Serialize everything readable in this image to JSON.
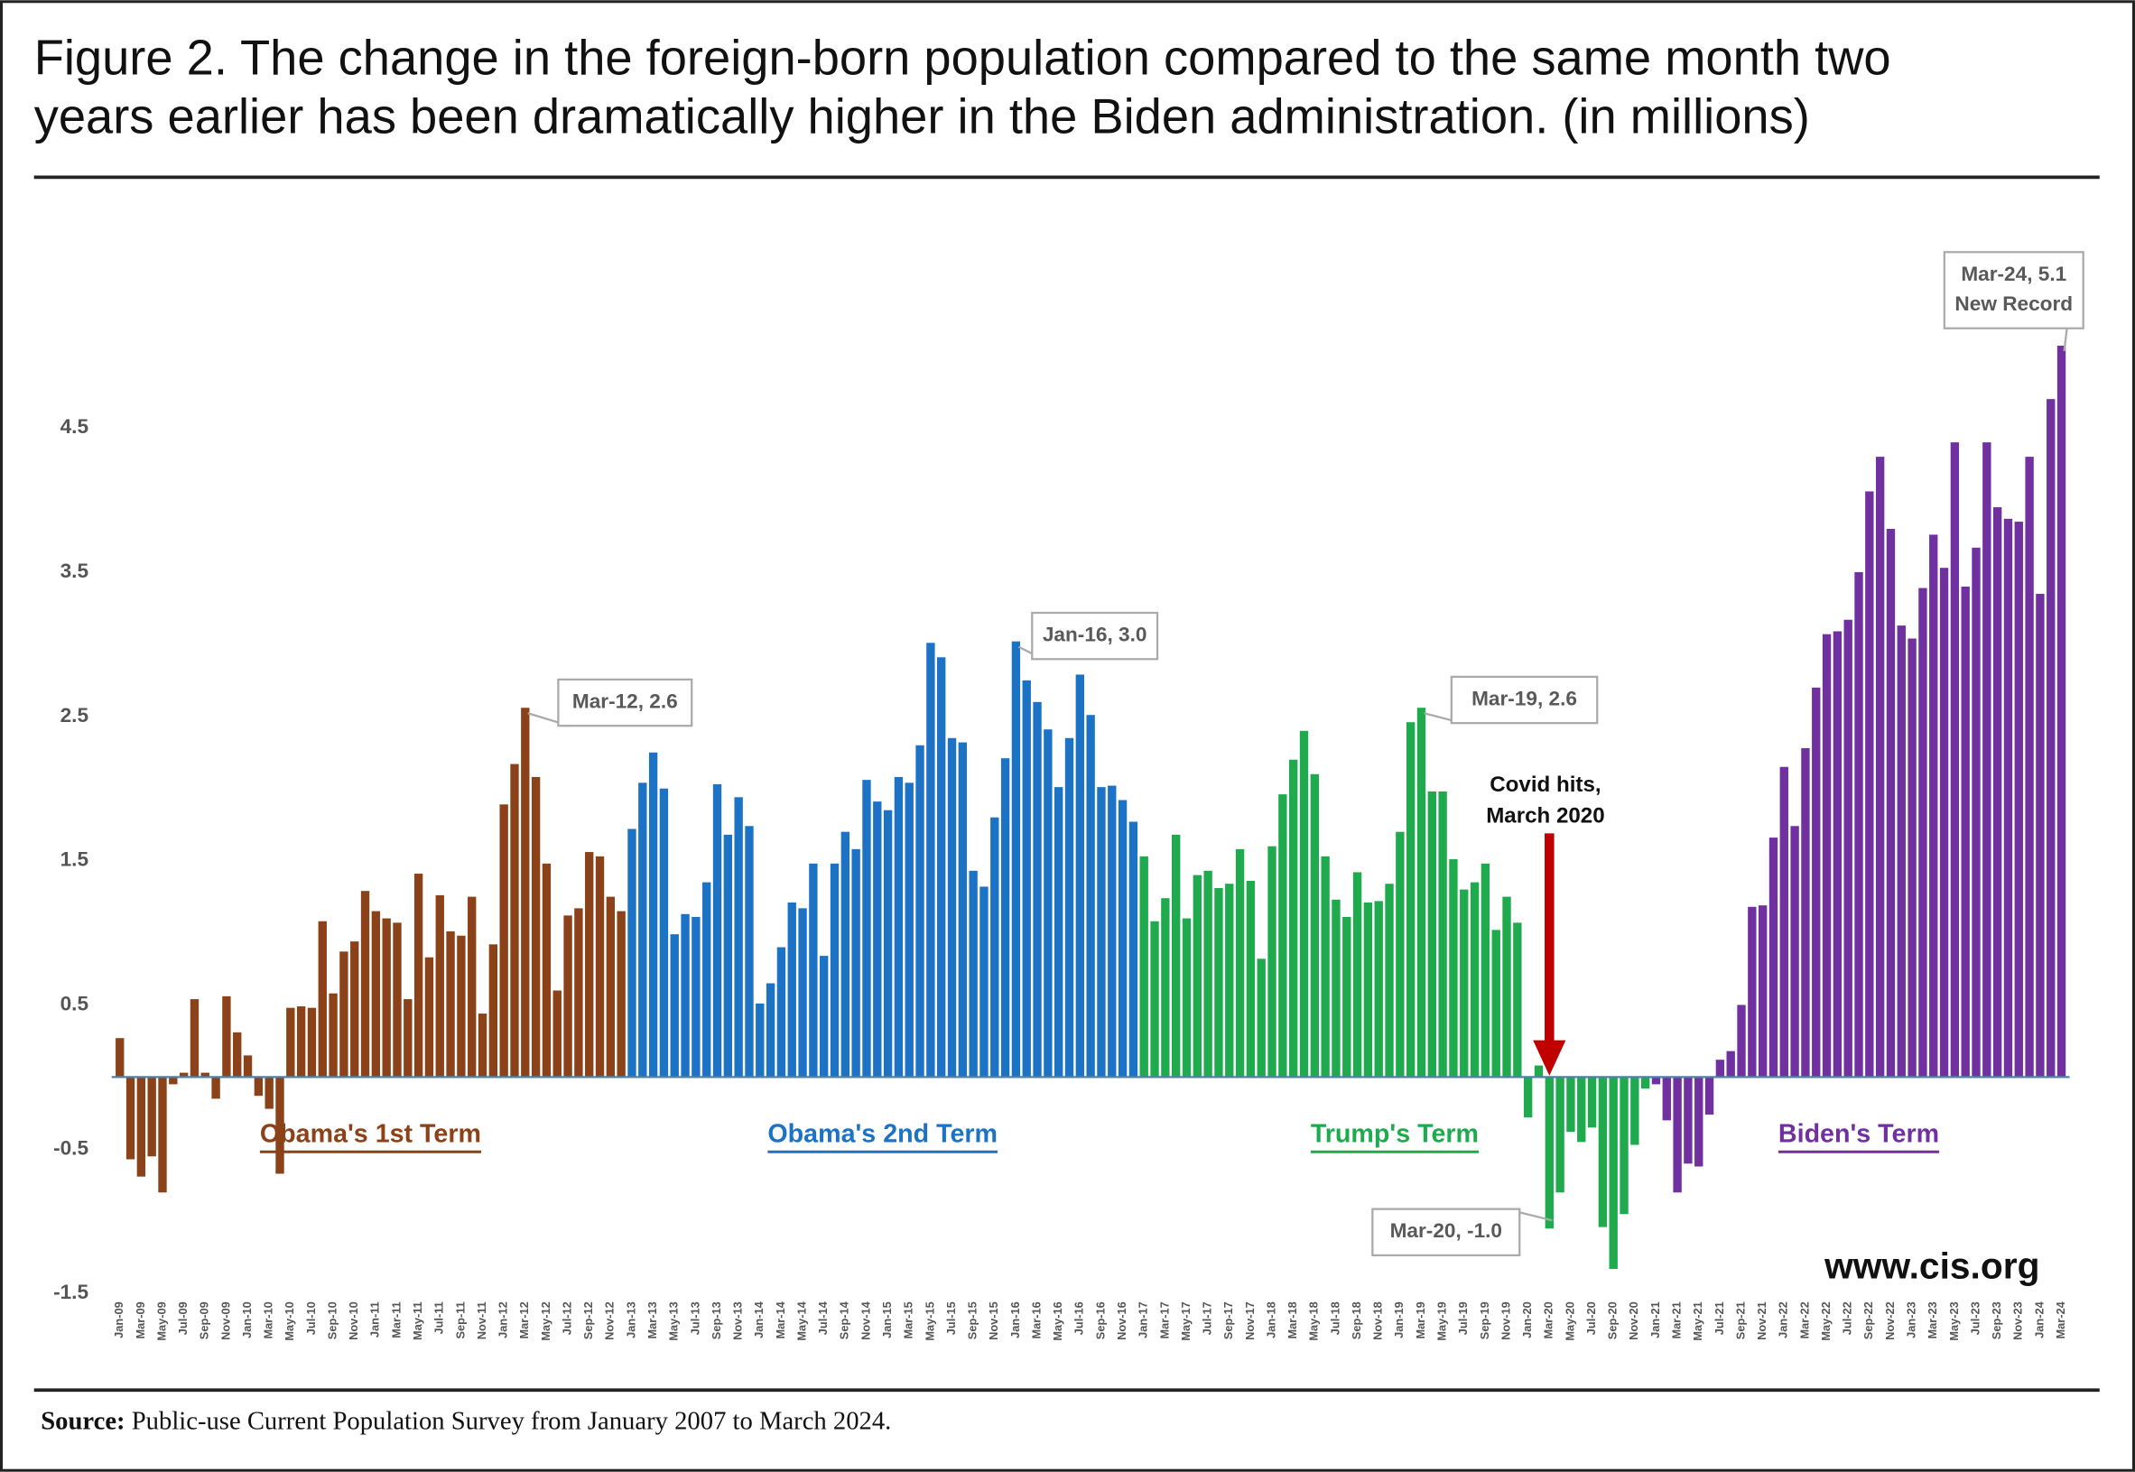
{
  "chart_data": {
    "type": "bar",
    "title": [
      "Figure 2. The change in the foreign-born population compared to the same month two",
      "years earlier has been dramatically higher in the Biden administration. (in millions)"
    ],
    "categories": [
      "Jan-09",
      null,
      "Mar-09",
      null,
      "May-09",
      null,
      "Jul-09",
      null,
      "Sep-09",
      null,
      "Nov-09",
      null,
      "Jan-10",
      null,
      "Mar-10",
      null,
      "May-10",
      null,
      "Jul-10",
      null,
      "Sep-10",
      null,
      "Nov-10",
      null,
      "Jan-11",
      null,
      "Mar-11",
      null,
      "May-11",
      null,
      "Jul-11",
      null,
      "Sep-11",
      null,
      "Nov-11",
      null,
      "Jan-12",
      null,
      "Mar-12",
      null,
      "May-12",
      null,
      "Jul-12",
      null,
      "Sep-12",
      null,
      "Nov-12",
      null,
      "Jan-13",
      null,
      "Mar-13",
      null,
      "May-13",
      null,
      "Jul-13",
      null,
      "Sep-13",
      null,
      "Nov-13",
      null,
      "Jan-14",
      null,
      "Mar-14",
      null,
      "May-14",
      null,
      "Jul-14",
      null,
      "Sep-14",
      null,
      "Nov-14",
      null,
      "Jan-15",
      null,
      "Mar-15",
      null,
      "May-15",
      null,
      "Jul-15",
      null,
      "Sep-15",
      null,
      "Nov-15",
      null,
      "Jan-16",
      null,
      "Mar-16",
      null,
      "May-16",
      null,
      "Jul-16",
      null,
      "Sep-16",
      null,
      "Nov-16",
      null,
      "Jan-17",
      null,
      "Mar-17",
      null,
      "May-17",
      null,
      "Jul-17",
      null,
      "Sep-17",
      null,
      "Nov-17",
      null,
      "Jan-18",
      null,
      "Mar-18",
      null,
      "May-18",
      null,
      "Jul-18",
      null,
      "Sep-18",
      null,
      "Nov-18",
      null,
      "Jan-19",
      null,
      "Mar-19",
      null,
      "May-19",
      null,
      "Jul-19",
      null,
      "Sep-19",
      null,
      "Nov-19",
      null,
      "Jan-20",
      null,
      "Mar-20",
      null,
      "May-20",
      null,
      "Jul-20",
      null,
      "Sep-20",
      null,
      "Nov-20",
      null,
      "Jan-21",
      null,
      "Mar-21",
      null,
      "May-21",
      null,
      "Jul-21",
      null,
      "Sep-21",
      null,
      "Nov-21",
      null,
      "Jan-22",
      null,
      "Mar-22",
      null,
      "May-22",
      null,
      "Jul-22",
      null,
      "Sep-22",
      null,
      "Nov-22",
      null,
      "Jan-23",
      null,
      "Mar-23",
      null,
      "May-23",
      null,
      "Jul-23",
      null,
      "Sep-23",
      null,
      "Nov-23",
      null,
      "Jan-24",
      null,
      "Mar-24"
    ],
    "series": [
      {
        "name": "Obama's 1st Term",
        "color": "#8b4218",
        "values": [
          0.27,
          -0.57,
          -0.69,
          -0.55,
          -0.8,
          -0.05,
          0.03,
          0.54,
          0.03,
          -0.15,
          0.56,
          0.31,
          0.15,
          -0.13,
          -0.22,
          -0.67,
          0.48,
          0.49,
          0.48,
          1.08,
          0.58,
          0.87,
          0.94,
          1.29,
          1.15,
          1.1,
          1.07,
          0.54,
          1.41,
          0.83,
          1.26,
          1.01,
          0.98,
          1.25,
          0.44,
          0.92,
          1.89,
          2.17,
          2.56,
          2.08,
          1.48,
          0.6,
          1.12,
          1.17,
          1.56,
          1.53,
          1.25,
          1.15,
          null,
          null,
          null,
          null,
          null,
          null,
          null,
          null,
          null,
          null,
          null,
          null,
          null,
          null,
          null,
          null,
          null,
          null,
          null,
          null,
          null,
          null,
          null,
          null,
          null,
          null,
          null,
          null,
          null,
          null,
          null,
          null,
          null,
          null,
          null,
          null,
          null,
          null,
          null,
          null,
          null,
          null,
          null,
          null,
          null,
          null,
          null,
          null,
          null,
          null,
          null,
          null,
          null,
          null,
          null,
          null,
          null,
          null,
          null,
          null,
          null,
          null,
          null,
          null,
          null,
          null,
          null,
          null,
          null,
          null,
          null,
          null,
          null,
          null,
          null,
          null,
          null,
          null,
          null,
          null,
          null,
          null,
          null,
          null,
          null,
          null,
          null,
          null,
          null,
          null,
          null,
          null,
          null,
          null,
          null,
          null,
          null,
          null,
          null,
          null,
          null,
          null,
          null,
          null,
          null,
          null,
          null,
          null,
          null,
          null,
          null,
          null,
          null,
          null,
          null,
          null,
          null,
          null,
          null,
          null,
          null,
          null,
          null,
          null,
          null,
          null,
          null,
          null,
          null,
          null,
          null,
          null,
          null,
          null,
          null
        ]
      },
      {
        "name": "Obama's 2nd Term",
        "color": "#1c72c4",
        "values": [
          null,
          null,
          null,
          null,
          null,
          null,
          null,
          null,
          null,
          null,
          null,
          null,
          null,
          null,
          null,
          null,
          null,
          null,
          null,
          null,
          null,
          null,
          null,
          null,
          null,
          null,
          null,
          null,
          null,
          null,
          null,
          null,
          null,
          null,
          null,
          null,
          null,
          null,
          null,
          null,
          null,
          null,
          null,
          null,
          null,
          null,
          null,
          null,
          1.72,
          2.04,
          2.25,
          2.0,
          0.99,
          1.13,
          1.11,
          1.35,
          2.03,
          1.68,
          1.94,
          1.74,
          0.51,
          0.65,
          0.9,
          1.21,
          1.17,
          1.48,
          0.84,
          1.48,
          1.7,
          1.58,
          2.06,
          1.91,
          1.85,
          2.08,
          2.04,
          2.3,
          3.01,
          2.91,
          2.35,
          2.32,
          1.43,
          1.32,
          1.8,
          2.21,
          3.02,
          2.75,
          2.6,
          2.41,
          2.01,
          2.35,
          2.79,
          2.51,
          2.01,
          2.02,
          1.92,
          1.77,
          null,
          null,
          null,
          null,
          null,
          null,
          null,
          null,
          null,
          null,
          null,
          null,
          null,
          null,
          null,
          null,
          null,
          null,
          null,
          null,
          null,
          null,
          null,
          null,
          null,
          null,
          null,
          null,
          null,
          null,
          null,
          null,
          null,
          null,
          null,
          null,
          null,
          null,
          null,
          null,
          null,
          null,
          null,
          null,
          null,
          null,
          null,
          null,
          null,
          null,
          null,
          null,
          null,
          null,
          null,
          null,
          null,
          null,
          null,
          null,
          null,
          null,
          null,
          null,
          null,
          null,
          null,
          null,
          null,
          null,
          null,
          null,
          null,
          null,
          null,
          null,
          null,
          null,
          null,
          null,
          null,
          null,
          null,
          null,
          null,
          null,
          null
        ]
      },
      {
        "name": "Trump's Term",
        "color": "#1faa4e",
        "values": [
          null,
          null,
          null,
          null,
          null,
          null,
          null,
          null,
          null,
          null,
          null,
          null,
          null,
          null,
          null,
          null,
          null,
          null,
          null,
          null,
          null,
          null,
          null,
          null,
          null,
          null,
          null,
          null,
          null,
          null,
          null,
          null,
          null,
          null,
          null,
          null,
          null,
          null,
          null,
          null,
          null,
          null,
          null,
          null,
          null,
          null,
          null,
          null,
          null,
          null,
          null,
          null,
          null,
          null,
          null,
          null,
          null,
          null,
          null,
          null,
          null,
          null,
          null,
          null,
          null,
          null,
          null,
          null,
          null,
          null,
          null,
          null,
          null,
          null,
          null,
          null,
          null,
          null,
          null,
          null,
          null,
          null,
          null,
          null,
          null,
          null,
          null,
          null,
          null,
          null,
          null,
          null,
          null,
          null,
          null,
          null,
          1.53,
          1.08,
          1.24,
          1.68,
          1.1,
          1.4,
          1.43,
          1.31,
          1.34,
          1.58,
          1.36,
          0.82,
          1.6,
          1.96,
          2.2,
          2.4,
          2.1,
          1.53,
          1.23,
          1.11,
          1.42,
          1.21,
          1.22,
          1.34,
          1.7,
          2.46,
          2.56,
          1.98,
          1.98,
          1.51,
          1.3,
          1.35,
          1.48,
          1.02,
          1.25,
          1.07,
          -0.28,
          0.08,
          -1.05,
          -0.8,
          -0.38,
          -0.45,
          -0.35,
          -1.04,
          -1.33,
          -0.95,
          -0.47,
          -0.08,
          null,
          null,
          null,
          null,
          null,
          null,
          null,
          null,
          null,
          null,
          null,
          null,
          null,
          null,
          null,
          null,
          null,
          null,
          null,
          null,
          null,
          null,
          null,
          null,
          null,
          null,
          null,
          null,
          null,
          null,
          null,
          null,
          null,
          null,
          null,
          null,
          null,
          null,
          null
        ]
      },
      {
        "name": "Biden's Term",
        "color": "#7030a0",
        "values": [
          null,
          null,
          null,
          null,
          null,
          null,
          null,
          null,
          null,
          null,
          null,
          null,
          null,
          null,
          null,
          null,
          null,
          null,
          null,
          null,
          null,
          null,
          null,
          null,
          null,
          null,
          null,
          null,
          null,
          null,
          null,
          null,
          null,
          null,
          null,
          null,
          null,
          null,
          null,
          null,
          null,
          null,
          null,
          null,
          null,
          null,
          null,
          null,
          null,
          null,
          null,
          null,
          null,
          null,
          null,
          null,
          null,
          null,
          null,
          null,
          null,
          null,
          null,
          null,
          null,
          null,
          null,
          null,
          null,
          null,
          null,
          null,
          null,
          null,
          null,
          null,
          null,
          null,
          null,
          null,
          null,
          null,
          null,
          null,
          null,
          null,
          null,
          null,
          null,
          null,
          null,
          null,
          null,
          null,
          null,
          null,
          null,
          null,
          null,
          null,
          null,
          null,
          null,
          null,
          null,
          null,
          null,
          null,
          null,
          null,
          null,
          null,
          null,
          null,
          null,
          null,
          null,
          null,
          null,
          null,
          null,
          null,
          null,
          null,
          null,
          null,
          null,
          null,
          null,
          null,
          null,
          null,
          null,
          null,
          null,
          null,
          null,
          null,
          null,
          null,
          null,
          null,
          null,
          null,
          -0.05,
          -0.3,
          -0.8,
          -0.6,
          -0.62,
          -0.26,
          0.12,
          0.18,
          0.5,
          1.18,
          1.19,
          1.66,
          2.15,
          1.74,
          2.28,
          2.7,
          3.07,
          3.09,
          3.17,
          3.5,
          4.06,
          4.3,
          3.8,
          3.13,
          3.04,
          3.39,
          3.76,
          3.53,
          4.4,
          3.4,
          3.67,
          4.4,
          3.95,
          3.87,
          3.85,
          4.3,
          3.35,
          4.7,
          5.07
        ]
      }
    ],
    "ylim": [
      -1.5,
      5.2
    ],
    "yticks": [
      -1.5,
      -0.5,
      0.5,
      1.5,
      2.5,
      3.5,
      4.5
    ],
    "grid": false,
    "callouts": [
      [
        "Mar-12, 2.6"
      ],
      [
        "Jan-16, 3.0"
      ],
      [
        "Mar-19, 2.6"
      ],
      [
        "Mar-20, -1.0"
      ],
      [
        "Mar-24, 5.1",
        "New Record"
      ]
    ],
    "covid_note": [
      "Covid hits,",
      "March 2020"
    ],
    "website": "www.cis.org",
    "source": {
      "label": "Source:",
      "text": "Public-use Current Population Survey from January 2007 to March 2024."
    }
  }
}
